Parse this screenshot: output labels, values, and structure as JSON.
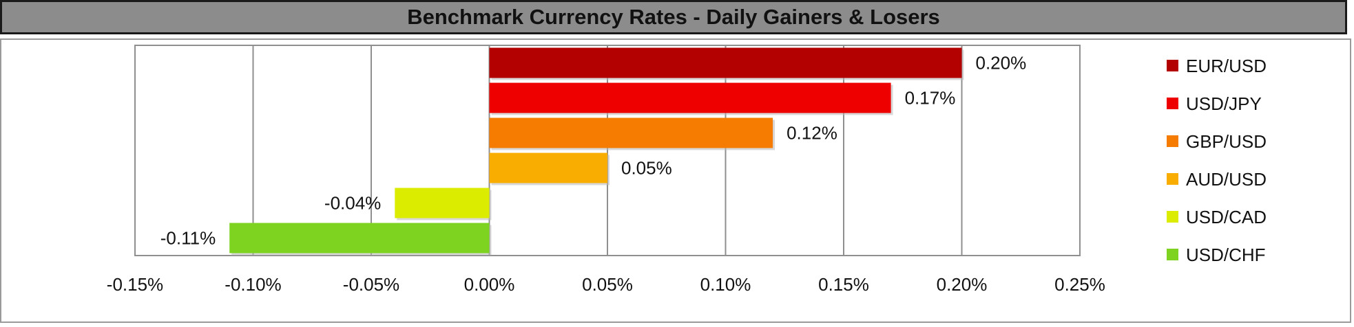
{
  "title": "Benchmark Currency Rates - Daily Gainers & Losers",
  "chart_data": {
    "type": "bar",
    "orientation": "horizontal",
    "categories": [
      "EUR/USD",
      "USD/JPY",
      "GBP/USD",
      "AUD/USD",
      "USD/CAD",
      "USD/CHF"
    ],
    "values": [
      0.2,
      0.17,
      0.12,
      0.05,
      -0.04,
      -0.11
    ],
    "value_labels": [
      "0.20%",
      "0.17%",
      "0.12%",
      "0.05%",
      "-0.04%",
      "-0.11%"
    ],
    "colors": [
      "#b30000",
      "#ee0000",
      "#f57c00",
      "#f9ad00",
      "#dcec00",
      "#7ed321"
    ],
    "xlim": [
      -0.15,
      0.25
    ],
    "xticks": [
      -0.15,
      -0.1,
      -0.05,
      0.0,
      0.05,
      0.1,
      0.15,
      0.2,
      0.25
    ],
    "xtick_labels": [
      "-0.15%",
      "-0.10%",
      "-0.05%",
      "0.00%",
      "0.05%",
      "0.10%",
      "0.15%",
      "0.20%",
      "0.25%"
    ],
    "grid": "vertical",
    "legend": "right",
    "title": "Benchmark Currency Rates - Daily Gainers & Losers"
  }
}
